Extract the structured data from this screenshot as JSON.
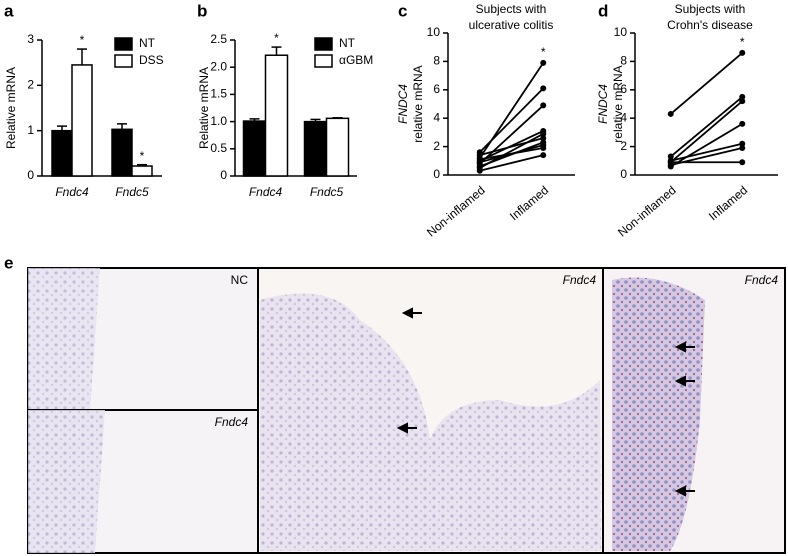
{
  "chart_data": [
    {
      "type": "bar",
      "panel": "a",
      "ylabel": "Relative mRNA",
      "categories": [
        "Fndc4",
        "Fndc5"
      ],
      "ylim": [
        0,
        3
      ],
      "yticks": [
        0,
        1,
        2,
        3
      ],
      "series": [
        {
          "name": "NT",
          "color": "#000000",
          "values": [
            1.0,
            1.03
          ],
          "errors": [
            0.1,
            0.12
          ]
        },
        {
          "name": "DSS",
          "color": "#ffffff",
          "values": [
            2.45,
            0.22
          ],
          "errors": [
            0.35,
            0.03
          ],
          "significance": [
            "*",
            "*"
          ]
        }
      ]
    },
    {
      "type": "bar",
      "panel": "b",
      "ylabel": "Relative mRNA",
      "categories": [
        "Fndc4",
        "Fndc5"
      ],
      "ylim": [
        0,
        2.5
      ],
      "yticks": [
        0,
        0.5,
        {
          "value": 1,
          "label": "1.0"
        },
        1.5,
        {
          "value": 2,
          "label": "2.0"
        },
        2.5
      ],
      "series": [
        {
          "name": "NT",
          "color": "#000000",
          "values": [
            1.01,
            1.0
          ],
          "errors": [
            0.04,
            0.04
          ]
        },
        {
          "name": "αGBM",
          "color": "#ffffff",
          "values": [
            2.22,
            1.06
          ],
          "errors": [
            0.15,
            0.01
          ],
          "significance": [
            "*",
            null
          ]
        }
      ]
    },
    {
      "type": "line",
      "panel": "c",
      "title": [
        "Subjects with",
        "ulcerative colitis"
      ],
      "ylabel": [
        "FNDC4",
        "relative mRNA"
      ],
      "categories": [
        "Non-inflamed",
        "Inflamed"
      ],
      "ylim": [
        0,
        10
      ],
      "yticks": [
        0,
        2,
        4,
        6,
        8,
        10
      ],
      "color": "#000000",
      "annotation": "*",
      "series": [
        {
          "values": [
            1.2,
            7.9
          ]
        },
        {
          "values": [
            1.6,
            6.1
          ]
        },
        {
          "values": [
            0.8,
            4.9
          ]
        },
        {
          "values": [
            1.0,
            3.1
          ]
        },
        {
          "values": [
            0.5,
            2.9
          ]
        },
        {
          "values": [
            1.4,
            2.6
          ]
        },
        {
          "values": [
            0.6,
            2.3
          ]
        },
        {
          "values": [
            0.9,
            2.1
          ]
        },
        {
          "values": [
            1.1,
            1.9
          ]
        },
        {
          "values": [
            0.3,
            1.4
          ]
        }
      ]
    },
    {
      "type": "line",
      "panel": "d",
      "title": [
        "Subjects with",
        "Crohn's disease"
      ],
      "ylabel": [
        "FNDC4",
        "relative mRNA"
      ],
      "categories": [
        "Non-inflamed",
        "Inflamed"
      ],
      "ylim": [
        0,
        10
      ],
      "yticks": [
        0,
        2,
        4,
        6,
        8,
        10
      ],
      "color": "#000000",
      "annotation": "*",
      "series": [
        {
          "values": [
            4.3,
            8.6
          ]
        },
        {
          "values": [
            1.3,
            5.5
          ]
        },
        {
          "values": [
            0.9,
            5.2
          ]
        },
        {
          "values": [
            0.6,
            3.6
          ]
        },
        {
          "values": [
            1.0,
            2.2
          ]
        },
        {
          "values": [
            0.7,
            1.9
          ]
        },
        {
          "values": [
            0.9,
            0.9
          ]
        }
      ]
    }
  ],
  "images": {
    "panel": "e",
    "labels": [
      "NC",
      "Fndc4",
      "Fndc4",
      "Fndc4"
    ]
  }
}
